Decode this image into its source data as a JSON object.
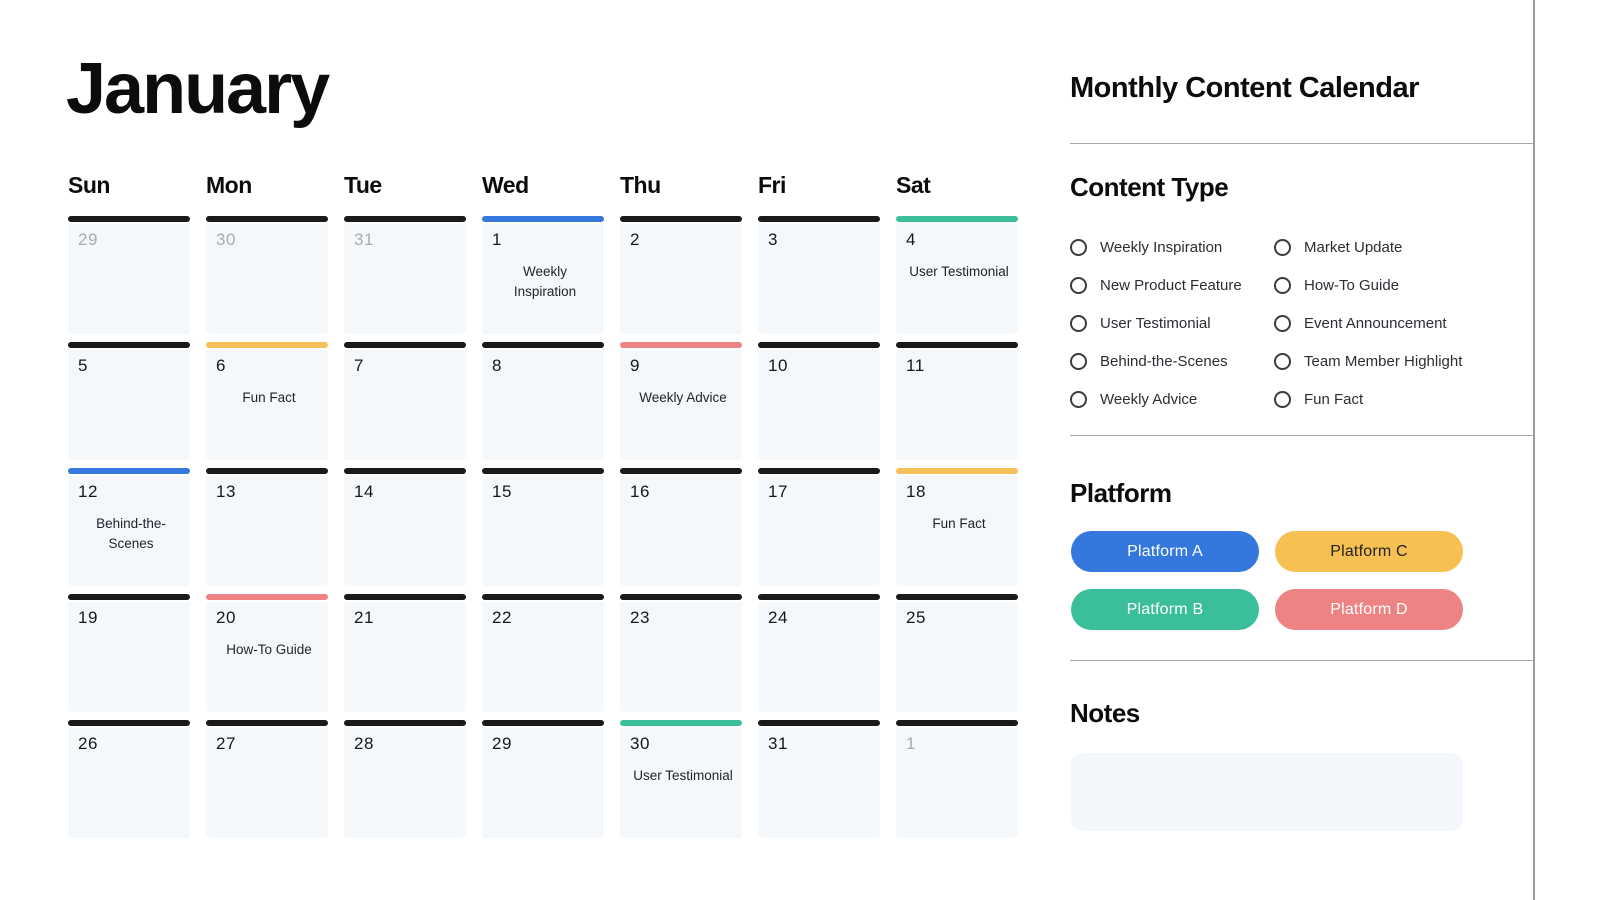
{
  "page": {
    "month_title": "January",
    "panel_title": "Monthly Content Calendar"
  },
  "colors": {
    "black": "#1a1a1a",
    "blue": "#3478de",
    "teal": "#3bbf9b",
    "yellow": "#f5c05a",
    "red": "#ee8383"
  },
  "calendar": {
    "day_headers": [
      "Sun",
      "Mon",
      "Tue",
      "Wed",
      "Thu",
      "Fri",
      "Sat"
    ],
    "weeks": [
      [
        {
          "day": "29",
          "muted": true,
          "bar": "black",
          "event": ""
        },
        {
          "day": "30",
          "muted": true,
          "bar": "black",
          "event": ""
        },
        {
          "day": "31",
          "muted": true,
          "bar": "black",
          "event": ""
        },
        {
          "day": "1",
          "muted": false,
          "bar": "blue",
          "event": "Weekly Inspiration"
        },
        {
          "day": "2",
          "muted": false,
          "bar": "black",
          "event": ""
        },
        {
          "day": "3",
          "muted": false,
          "bar": "black",
          "event": ""
        },
        {
          "day": "4",
          "muted": false,
          "bar": "teal",
          "event": "User Testimonial"
        }
      ],
      [
        {
          "day": "5",
          "muted": false,
          "bar": "black",
          "event": ""
        },
        {
          "day": "6",
          "muted": false,
          "bar": "yellow",
          "event": "Fun Fact"
        },
        {
          "day": "7",
          "muted": false,
          "bar": "black",
          "event": ""
        },
        {
          "day": "8",
          "muted": false,
          "bar": "black",
          "event": ""
        },
        {
          "day": "9",
          "muted": false,
          "bar": "red",
          "event": "Weekly Advice"
        },
        {
          "day": "10",
          "muted": false,
          "bar": "black",
          "event": ""
        },
        {
          "day": "11",
          "muted": false,
          "bar": "black",
          "event": ""
        }
      ],
      [
        {
          "day": "12",
          "muted": false,
          "bar": "blue",
          "event": "Behind-the-Scenes"
        },
        {
          "day": "13",
          "muted": false,
          "bar": "black",
          "event": ""
        },
        {
          "day": "14",
          "muted": false,
          "bar": "black",
          "event": ""
        },
        {
          "day": "15",
          "muted": false,
          "bar": "black",
          "event": ""
        },
        {
          "day": "16",
          "muted": false,
          "bar": "black",
          "event": ""
        },
        {
          "day": "17",
          "muted": false,
          "bar": "black",
          "event": ""
        },
        {
          "day": "18",
          "muted": false,
          "bar": "yellow",
          "event": "Fun Fact"
        }
      ],
      [
        {
          "day": "19",
          "muted": false,
          "bar": "black",
          "event": ""
        },
        {
          "day": "20",
          "muted": false,
          "bar": "red",
          "event": "How-To Guide"
        },
        {
          "day": "21",
          "muted": false,
          "bar": "black",
          "event": ""
        },
        {
          "day": "22",
          "muted": false,
          "bar": "black",
          "event": ""
        },
        {
          "day": "23",
          "muted": false,
          "bar": "black",
          "event": ""
        },
        {
          "day": "24",
          "muted": false,
          "bar": "black",
          "event": ""
        },
        {
          "day": "25",
          "muted": false,
          "bar": "black",
          "event": ""
        }
      ],
      [
        {
          "day": "26",
          "muted": false,
          "bar": "black",
          "event": ""
        },
        {
          "day": "27",
          "muted": false,
          "bar": "black",
          "event": ""
        },
        {
          "day": "28",
          "muted": false,
          "bar": "black",
          "event": ""
        },
        {
          "day": "29",
          "muted": false,
          "bar": "black",
          "event": ""
        },
        {
          "day": "30",
          "muted": false,
          "bar": "teal",
          "event": "User Testimonial"
        },
        {
          "day": "31",
          "muted": false,
          "bar": "black",
          "event": ""
        },
        {
          "day": "1",
          "muted": true,
          "bar": "black",
          "event": ""
        }
      ]
    ]
  },
  "content_type": {
    "heading": "Content Type",
    "columns": [
      [
        "Weekly Inspiration",
        "New Product Feature",
        "User Testimonial",
        "Behind-the-Scenes",
        "Weekly Advice"
      ],
      [
        "Market Update",
        "How-To Guide",
        "Event Announcement",
        "Team Member Highlight",
        "Fun Fact"
      ]
    ]
  },
  "platform": {
    "heading": "Platform",
    "buttons": [
      {
        "label": "Platform A",
        "color": "#3478de",
        "text_color": "#ffffff"
      },
      {
        "label": "Platform C",
        "color": "#f7c052",
        "text_color": "#232323"
      },
      {
        "label": "Platform B",
        "color": "#3bbf9b",
        "text_color": "#ffffff"
      },
      {
        "label": "Platform D",
        "color": "#ee8383",
        "text_color": "#ffffff"
      }
    ]
  },
  "notes": {
    "heading": "Notes"
  }
}
